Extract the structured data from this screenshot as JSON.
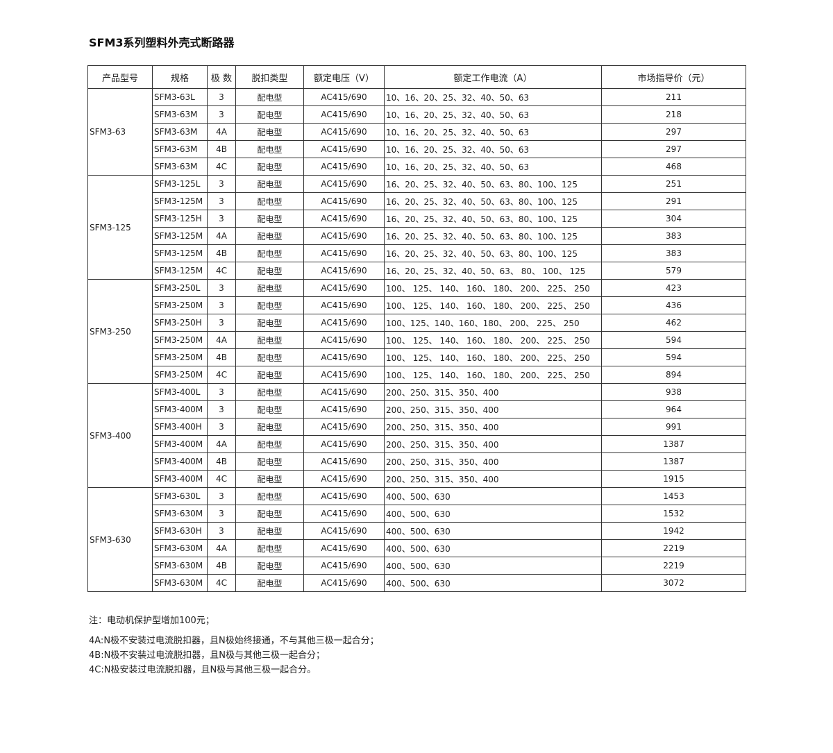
{
  "title": "SFM3系列塑料外壳式断路器",
  "headers": [
    "产品型号",
    "规格",
    "极 数",
    "脱扣类型",
    "额定电压（V）",
    "额定工作电流（A）",
    "市场指导价（元）"
  ],
  "groups": [
    {
      "model": "SFM3-63",
      "rows": [
        [
          "SFM3-63L",
          "3",
          "配电型",
          "AC415/690",
          "10、16、20、25、32、40、50、63",
          "211"
        ],
        [
          "SFM3-63M",
          "3",
          "配电型",
          "AC415/690",
          "10、16、20、25、32、40、50、63",
          "218"
        ],
        [
          "SFM3-63M",
          "4A",
          "配电型",
          "AC415/690",
          "10、16、20、25、32、40、50、63",
          "297"
        ],
        [
          "SFM3-63M",
          "4B",
          "配电型",
          "AC415/690",
          "10、16、20、25、32、40、50、63",
          "297"
        ],
        [
          "SFM3-63M",
          "4C",
          "配电型",
          "AC415/690",
          "10、16、20、25、32、40、50、63",
          "468"
        ]
      ]
    },
    {
      "model": "SFM3-125",
      "rows": [
        [
          "SFM3-125L",
          "3",
          "配电型",
          "AC415/690",
          "16、20、25、32、40、50、63、80、100、125",
          "251"
        ],
        [
          "SFM3-125M",
          "3",
          "配电型",
          "AC415/690",
          "16、20、25、32、40、50、63、80、100、125",
          "291"
        ],
        [
          "SFM3-125H",
          "3",
          "配电型",
          "AC415/690",
          "16、20、25、32、40、50、63、80、100、125",
          "304"
        ],
        [
          "SFM3-125M",
          "4A",
          "配电型",
          "AC415/690",
          "16、20、25、32、40、50、63、80、100、125",
          "383"
        ],
        [
          "SFM3-125M",
          "4B",
          "配电型",
          "AC415/690",
          "16、20、25、32、40、50、63、80、100、125",
          "383"
        ],
        [
          "SFM3-125M",
          "4C",
          "配电型",
          "AC415/690",
          "16、20、25、32、40、50、63、 80、 100、 125",
          "579"
        ]
      ]
    },
    {
      "model": "SFM3-250",
      "rows": [
        [
          "SFM3-250L",
          "3",
          "配电型",
          "AC415/690",
          "100、 125、 140、 160、 180、 200、 225、 250",
          "423"
        ],
        [
          "SFM3-250M",
          "3",
          "配电型",
          "AC415/690",
          "100、 125、 140、 160、 180、 200、 225、 250",
          "436"
        ],
        [
          "SFM3-250H",
          "3",
          "配电型",
          "AC415/690",
          "100、125、140、160、180、 200、 225、 250",
          "462"
        ],
        [
          "SFM3-250M",
          "4A",
          "配电型",
          "AC415/690",
          "100、 125、 140、 160、 180、 200、 225、 250",
          "594"
        ],
        [
          "SFM3-250M",
          "4B",
          "配电型",
          "AC415/690",
          "100、 125、 140、 160、 180、 200、 225、 250",
          "594"
        ],
        [
          "SFM3-250M",
          "4C",
          "配电型",
          "AC415/690",
          "100、 125、 140、 160、 180、 200、 225、 250",
          "894"
        ]
      ]
    },
    {
      "model": "SFM3-400",
      "rows": [
        [
          "SFM3-400L",
          "3",
          "配电型",
          "AC415/690",
          "200、250、315、350、400",
          "938"
        ],
        [
          "SFM3-400M",
          "3",
          "配电型",
          "AC415/690",
          "200、250、315、350、400",
          "964"
        ],
        [
          "SFM3-400H",
          "3",
          "配电型",
          "AC415/690",
          "200、250、315、350、400",
          "991"
        ],
        [
          "SFM3-400M",
          "4A",
          "配电型",
          "AC415/690",
          "200、250、315、350、400",
          "1387"
        ],
        [
          "SFM3-400M",
          "4B",
          "配电型",
          "AC415/690",
          "200、250、315、350、400",
          "1387"
        ],
        [
          "SFM3-400M",
          "4C",
          "配电型",
          "AC415/690",
          "200、250、315、350、400",
          "1915"
        ]
      ]
    },
    {
      "model": "SFM3-630",
      "rows": [
        [
          "SFM3-630L",
          "3",
          "配电型",
          "AC415/690",
          "400、500、630",
          "1453"
        ],
        [
          "SFM3-630M",
          "3",
          "配电型",
          "AC415/690",
          "400、500、630",
          "1532"
        ],
        [
          "SFM3-630H",
          "3",
          "配电型",
          "AC415/690",
          "400、500、630",
          "1942"
        ],
        [
          "SFM3-630M",
          "4A",
          "配电型",
          "AC415/690",
          "400、500、630",
          "2219"
        ],
        [
          "SFM3-630M",
          "4B",
          "配电型",
          "AC415/690",
          "400、500、630",
          "2219"
        ],
        [
          "SFM3-630M",
          "4C",
          "配电型",
          "AC415/690",
          "400、500、630",
          "3072"
        ]
      ]
    }
  ],
  "notes": [
    "注：电动机保护型增加100元；",
    "4A:N极不安装过电流脱扣器，且N极始终接通，不与其他三极一起合分；",
    "4B:N极不安装过电流脱扣器，且N极与其他三极一起合分；",
    "4C:N极安装过电流脱扣器，且N极与其他三极一起合分。"
  ]
}
